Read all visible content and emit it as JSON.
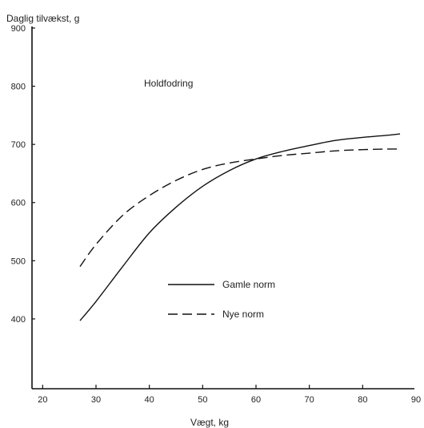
{
  "chart_data": {
    "type": "line",
    "title": "",
    "annotation": "Holdfodring",
    "ylabel": "Daglig tilvækst, g",
    "xlabel": "Vægt, kg",
    "xlim": [
      18,
      90
    ],
    "ylim": [
      280,
      900
    ],
    "xticks": [
      20,
      30,
      40,
      50,
      60,
      70,
      80,
      90
    ],
    "yticks": [
      400,
      500,
      600,
      700,
      800,
      900
    ],
    "grid": false,
    "legend_position": "middle-right",
    "series": [
      {
        "name": "Gamle norm",
        "style": "solid",
        "x": [
          27,
          30,
          35,
          40,
          45,
          50,
          55,
          60,
          65,
          70,
          75,
          80,
          85,
          87
        ],
        "y": [
          397,
          430,
          490,
          548,
          592,
          628,
          655,
          675,
          688,
          698,
          707,
          712,
          716,
          718
        ]
      },
      {
        "name": "Nye norm",
        "style": "dashed",
        "x": [
          27,
          30,
          35,
          40,
          45,
          50,
          55,
          60,
          65,
          70,
          75,
          80,
          85,
          87
        ],
        "y": [
          490,
          528,
          578,
          612,
          638,
          657,
          668,
          675,
          681,
          685,
          689,
          691,
          692,
          692
        ]
      }
    ]
  }
}
